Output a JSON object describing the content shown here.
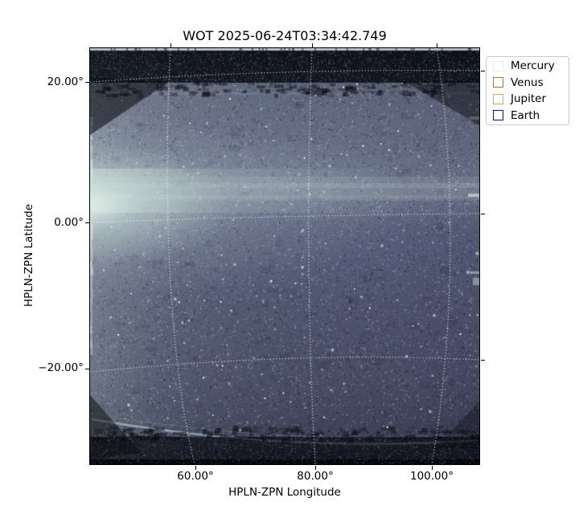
{
  "figure": {
    "title": "WOT 2025-06-24T03:34:42.749",
    "background_color": "#ffffff"
  },
  "axes": {
    "xlabel": "HPLN-ZPN Longitude",
    "ylabel": "HPLN-ZPN Latitude",
    "xtick_labels": [
      "60.00°",
      "80.00°",
      "100.00°"
    ],
    "ytick_labels": [
      "20.00°",
      "0.00°",
      "−20.00°"
    ],
    "spine_color": "#000000"
  },
  "legend": {
    "items": [
      {
        "label": "Mercury",
        "color": "#ebebeb"
      },
      {
        "label": "Venus",
        "color": "#d2691e"
      },
      {
        "label": "Jupiter",
        "color": "#ffa500"
      },
      {
        "label": "Earth",
        "color": "#0000ff"
      }
    ]
  },
  "chart_data": {
    "type": "heatmap",
    "title": "WOT 2025-06-24T03:34:42.749",
    "xlabel": "HPLN-ZPN Longitude",
    "ylabel": "HPLN-ZPN Latitude",
    "xticks_deg": [
      60,
      80,
      100
    ],
    "yticks_deg": [
      20,
      0,
      -20
    ],
    "xlim_deg": [
      42.4,
      108.0
    ],
    "ylim_deg": [
      -32.5,
      24.7
    ],
    "grid": true,
    "grid_style": "white dotted curvilinear (ZPN projection)",
    "legend_position": "upper right, outside axes",
    "image_description": "Wide-field heliospheric starfield image (WISPR outer telescope); slate blue-gray dense star noise; bright zodiacal-light glow at left edge near 0-5 deg latitude with pale horizontal streak band crossing the field; dark speckled calibration bands along top and bottom edges; thin bright line at very top edge; faint bright arc sweeping across the lower edge; no planet markers visible inside the frame",
    "gridlines": {
      "color": "#ffffff",
      "dash": [
        1.2,
        2.6
      ],
      "latitude": [
        {
          "deg": 20,
          "path": [
            [
              0,
              42
            ],
            [
              240,
              25
            ],
            [
              484,
              28
            ]
          ]
        },
        {
          "deg": 0,
          "path": [
            [
              0,
              217
            ],
            [
              242,
              208
            ],
            [
              484,
              206
            ]
          ]
        },
        {
          "deg": -20,
          "path": [
            [
              0,
              403
            ],
            [
              260,
              377
            ],
            [
              484,
              388
            ]
          ]
        }
      ],
      "longitude": [
        {
          "deg": 60,
          "path": [
            [
              100,
              0
            ],
            [
              91,
              170
            ],
            [
              96,
              380
            ],
            [
              130,
              518
            ]
          ]
        },
        {
          "deg": 80,
          "path": [
            [
              276,
              0
            ],
            [
              269,
              170
            ],
            [
              271,
              360
            ],
            [
              280,
              518
            ]
          ]
        },
        {
          "deg": 100,
          "path": [
            [
              431,
              0
            ],
            [
              453,
              140
            ],
            [
              456,
              340
            ],
            [
              425,
              518
            ]
          ]
        }
      ]
    },
    "palette": {
      "field_mid": "#5e647b",
      "field_dark": "#3f4459",
      "glow": "#e6f4ee",
      "edge_band": "#0a0c14",
      "star_bright": "#f0f4fc"
    }
  }
}
